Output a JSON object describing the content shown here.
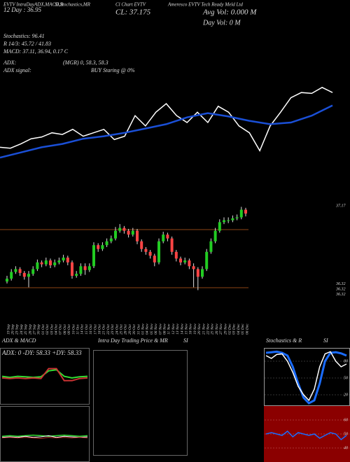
{
  "header": {
    "texts": [
      "EVTV IntraDayADX,MACD,B",
      "SI,Stochastics,MR",
      "Cl Chart EVTV",
      "Ameresco EVTV Tech Ready Meld Ltd",
      "12 Day : 36.95",
      "CL: 37.175",
      "Avg Vol: 0.000   M",
      "Day Vol: 0   M",
      "Stochastics: 96.41",
      "R   14/3: 45.72 / 41.83",
      "MACD: 37.11, 36.94, 0.17 C",
      "ADX:",
      "(MGR) 0, 58.3, 58.3",
      "ADX  signal:",
      "BUY Staring @ 0%"
    ]
  },
  "ma_chart": {
    "type": "line",
    "ylim": [
      36.3,
      37.2
    ],
    "series": [
      {
        "color": "#ffffff",
        "values": [
          36.46,
          36.45,
          36.5,
          36.56,
          36.58,
          36.63,
          36.61,
          36.67,
          36.59,
          36.63,
          36.67,
          36.55,
          36.59,
          36.83,
          36.71,
          36.87,
          36.97,
          36.83,
          36.75,
          36.87,
          36.75,
          36.94,
          36.87,
          36.71,
          36.63,
          36.42,
          36.71,
          36.87,
          37.04,
          37.1,
          37.09,
          37.16,
          37.1
        ]
      },
      {
        "color": "#1a4fd6",
        "values": [
          36.34,
          36.4,
          36.46,
          36.5,
          36.56,
          36.59,
          36.63,
          36.68,
          36.73,
          36.81,
          36.86,
          36.82,
          36.77,
          36.73,
          36.75,
          36.83,
          36.95
        ]
      }
    ]
  },
  "price_chart": {
    "type": "candlestick",
    "ylim": [
      36.25,
      37.2
    ],
    "price_labels": [
      37.17,
      36.32,
      36.32,
      36.32
    ],
    "dates": [
      "19 Sep",
      "20 Sep",
      "23 Sep",
      "24 Sep",
      "25 Sep",
      "26 Sep",
      "27 Sep",
      "30 Sep",
      "01 Oct",
      "02 Oct",
      "03 Oct",
      "04 Oct",
      "07 Oct",
      "08 Oct",
      "09 Oct",
      "10 Oct",
      "11 Oct",
      "14 Oct",
      "15 Oct",
      "16 Oct",
      "17 Oct",
      "18 Oct",
      "21 Oct",
      "22 Oct",
      "23 Oct",
      "24 Oct",
      "25 Oct",
      "28 Oct",
      "29 Oct",
      "30 Oct",
      "31 Oct",
      "01 Nov",
      "04 Nov",
      "05 Nov",
      "06 Nov",
      "07 Nov",
      "08 Nov",
      "11 Nov",
      "12 Nov",
      "13 Nov",
      "14 Nov",
      "15 Nov",
      "18 Nov",
      "19 Nov",
      "20 Nov",
      "21 Nov",
      "22 Nov",
      "25 Nov",
      "26 Nov",
      "27 Nov",
      "29 Nov",
      "02 Dec",
      "03 Dec",
      "04 Dec",
      "05 Dec",
      "06 Dec"
    ],
    "candles": [
      [
        36.38,
        36.44,
        36.36,
        36.41
      ],
      [
        36.41,
        36.51,
        36.39,
        36.48
      ],
      [
        36.48,
        36.54,
        36.46,
        36.51
      ],
      [
        36.51,
        36.53,
        36.44,
        36.47
      ],
      [
        36.47,
        36.49,
        36.4,
        36.43
      ],
      [
        36.43,
        36.49,
        36.32,
        36.46
      ],
      [
        36.46,
        36.54,
        36.44,
        36.51
      ],
      [
        36.51,
        36.61,
        36.49,
        36.58
      ],
      [
        36.58,
        36.6,
        36.53,
        36.56
      ],
      [
        36.56,
        36.63,
        36.54,
        36.6
      ],
      [
        36.6,
        36.62,
        36.52,
        36.55
      ],
      [
        36.55,
        36.61,
        36.53,
        36.58
      ],
      [
        36.58,
        36.63,
        36.56,
        36.6
      ],
      [
        36.6,
        36.66,
        36.58,
        36.63
      ],
      [
        36.63,
        36.65,
        36.55,
        36.58
      ],
      [
        36.58,
        36.6,
        36.41,
        36.44
      ],
      [
        36.44,
        36.49,
        36.42,
        36.46
      ],
      [
        36.46,
        36.57,
        36.44,
        36.54
      ],
      [
        36.54,
        36.57,
        36.45,
        36.5
      ],
      [
        36.5,
        36.57,
        36.48,
        36.54
      ],
      [
        36.54,
        36.79,
        36.52,
        36.76
      ],
      [
        36.76,
        36.78,
        36.69,
        36.72
      ],
      [
        36.72,
        36.79,
        36.7,
        36.76
      ],
      [
        36.76,
        36.83,
        36.74,
        36.8
      ],
      [
        36.8,
        36.86,
        36.78,
        36.83
      ],
      [
        36.83,
        36.95,
        36.81,
        36.91
      ],
      [
        36.91,
        36.98,
        36.89,
        36.94
      ],
      [
        36.94,
        36.96,
        36.88,
        36.91
      ],
      [
        36.91,
        36.93,
        36.84,
        36.87
      ],
      [
        36.87,
        36.94,
        36.85,
        36.91
      ],
      [
        36.91,
        36.93,
        36.77,
        36.8
      ],
      [
        36.8,
        36.82,
        36.69,
        36.72
      ],
      [
        36.72,
        36.74,
        36.66,
        36.69
      ],
      [
        36.69,
        36.71,
        36.62,
        36.65
      ],
      [
        36.65,
        36.67,
        36.54,
        36.58
      ],
      [
        36.58,
        36.83,
        36.56,
        36.8
      ],
      [
        36.8,
        36.9,
        36.78,
        36.87
      ],
      [
        36.87,
        36.89,
        36.8,
        36.83
      ],
      [
        36.83,
        36.85,
        36.66,
        36.69
      ],
      [
        36.69,
        36.71,
        36.59,
        36.62
      ],
      [
        36.62,
        36.64,
        36.55,
        36.58
      ],
      [
        36.58,
        36.63,
        36.56,
        36.6
      ],
      [
        36.6,
        36.62,
        36.51,
        36.54
      ],
      [
        36.54,
        36.57,
        36.32,
        36.51
      ],
      [
        36.51,
        36.53,
        36.29,
        36.43
      ],
      [
        36.43,
        36.54,
        36.41,
        36.51
      ],
      [
        36.51,
        36.72,
        36.49,
        36.69
      ],
      [
        36.69,
        36.83,
        36.67,
        36.8
      ],
      [
        36.8,
        36.94,
        36.78,
        36.91
      ],
      [
        36.91,
        37.03,
        36.89,
        37.0
      ],
      [
        37.0,
        37.05,
        36.98,
        37.02
      ],
      [
        37.02,
        37.05,
        36.99,
        37.02
      ],
      [
        37.02,
        37.07,
        37.0,
        37.04
      ],
      [
        37.04,
        37.08,
        37.02,
        37.05
      ],
      [
        37.05,
        37.16,
        37.03,
        37.13
      ],
      [
        37.13,
        37.15,
        37.06,
        37.09
      ]
    ]
  },
  "adx_panel": {
    "title": "ADX  & MACD",
    "legend": "ADX: 0   -DY: 58.33  +DY: 58.33",
    "ylim": [
      0,
      100
    ],
    "lines": [
      {
        "color": "#33dd33",
        "values": [
          48,
          46,
          48,
          47,
          46,
          47,
          58,
          60,
          48,
          45,
          47,
          48
        ]
      },
      {
        "color": "#cc3333",
        "values": [
          45,
          44,
          45,
          44,
          45,
          44,
          62,
          62,
          40,
          40,
          44,
          45
        ]
      }
    ],
    "lower_lines": [
      {
        "color": "#33dd33",
        "values": [
          46,
          47,
          46,
          47,
          48,
          47,
          46,
          47,
          48,
          47,
          46,
          47
        ]
      },
      {
        "color": "#ffffff",
        "values": [
          44,
          45,
          44,
          46,
          44,
          45,
          47,
          44,
          46,
          45,
          44,
          45
        ]
      },
      {
        "color": "#cc3333",
        "values": [
          43,
          44,
          43,
          44,
          43,
          42,
          44,
          43,
          44,
          43,
          44,
          43
        ]
      }
    ]
  },
  "intraday_panel": {
    "title": "Intra  Day Trading Price  & MR",
    "title2": "SI"
  },
  "stoch_panel": {
    "title": "Stochastics & R",
    "title2": "SI",
    "ylim": [
      0,
      100
    ],
    "yticks": [
      80,
      50,
      20
    ],
    "lines": [
      {
        "color": "#1a6cff",
        "values": [
          95,
          96,
          97,
          95,
          90,
          70,
          40,
          15,
          5,
          10,
          40,
          80,
          95,
          96,
          94,
          90
        ]
      },
      {
        "color": "#ffffff",
        "values": [
          90,
          85,
          92,
          93,
          80,
          60,
          35,
          20,
          10,
          30,
          70,
          93,
          97,
          80,
          70,
          75
        ]
      }
    ],
    "lower_ylim": [
      30,
      70
    ],
    "lower_yticks": [
      60,
      50,
      40
    ],
    "lower_lines": [
      {
        "color": "#1a6cff",
        "values": [
          50,
          51,
          50,
          49,
          52,
          48,
          51,
          50,
          49,
          50,
          47,
          49,
          51,
          50,
          46,
          49
        ]
      }
    ]
  }
}
